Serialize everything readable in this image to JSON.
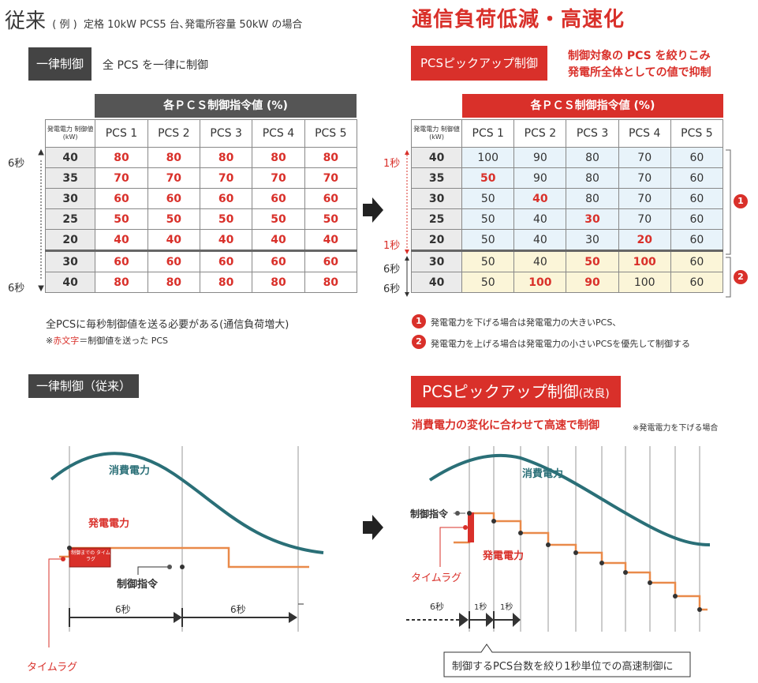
{
  "left": {
    "title_main": "従来",
    "title_paren": "( 例 )",
    "title_cond": "定格 10kW PCS5 台､発電所容量 50kW の場合",
    "badge": "一律制御",
    "badge_desc": "全 PCS を一律に制御",
    "group_header": "各ＰＣＳ制御指令値 (%)",
    "row_header": "発電電力 制御値 (kW)",
    "columns": [
      "PCS 1",
      "PCS 2",
      "PCS 3",
      "PCS 4",
      "PCS 5"
    ],
    "rows": [
      {
        "kw": "40",
        "vals": [
          "80",
          "80",
          "80",
          "80",
          "80"
        ]
      },
      {
        "kw": "35",
        "vals": [
          "70",
          "70",
          "70",
          "70",
          "70"
        ]
      },
      {
        "kw": "30",
        "vals": [
          "60",
          "60",
          "60",
          "60",
          "60"
        ]
      },
      {
        "kw": "25",
        "vals": [
          "50",
          "50",
          "50",
          "50",
          "50"
        ]
      },
      {
        "kw": "20",
        "vals": [
          "40",
          "40",
          "40",
          "40",
          "40"
        ]
      },
      {
        "kw": "30",
        "vals": [
          "60",
          "60",
          "60",
          "60",
          "60"
        ]
      },
      {
        "kw": "40",
        "vals": [
          "80",
          "80",
          "80",
          "80",
          "80"
        ]
      }
    ],
    "side_top": "6秒",
    "side_bottom": "6秒",
    "note1": "全PCSに毎秒制御値を送る必要がある(通信負荷増大)",
    "note2_prefix": "※",
    "note2_red": "赤文字",
    "note2_rest": "＝制御値を送った PCS"
  },
  "right": {
    "title": "通信負荷低減・高速化",
    "badge": "PCSピックアップ制御",
    "badge_desc1": "制御対象の PCS を絞りこみ",
    "badge_desc2": "発電所全体としての値で抑制",
    "group_header": "各ＰＣＳ制御指令値 (%)",
    "row_header": "発電電力 制御値 (kW)",
    "columns": [
      "PCS 1",
      "PCS 2",
      "PCS 3",
      "PCS 4",
      "PCS 5"
    ],
    "rows": [
      {
        "kw": "40",
        "vals": [
          "100",
          "90",
          "80",
          "70",
          "60"
        ]
      },
      {
        "kw": "35",
        "vals": [
          "50",
          "90",
          "80",
          "70",
          "60"
        ]
      },
      {
        "kw": "30",
        "vals": [
          "50",
          "40",
          "80",
          "70",
          "60"
        ]
      },
      {
        "kw": "25",
        "vals": [
          "50",
          "40",
          "30",
          "70",
          "60"
        ]
      },
      {
        "kw": "20",
        "vals": [
          "50",
          "40",
          "30",
          "20",
          "60"
        ]
      },
      {
        "kw": "30",
        "vals": [
          "50",
          "40",
          "50",
          "100",
          "60"
        ]
      },
      {
        "kw": "40",
        "vals": [
          "50",
          "100",
          "90",
          "100",
          "60"
        ]
      }
    ],
    "red_cells": [
      [
        1,
        0
      ],
      [
        2,
        1
      ],
      [
        3,
        2
      ],
      [
        4,
        3
      ],
      [
        5,
        2
      ],
      [
        5,
        3
      ],
      [
        6,
        1
      ],
      [
        6,
        2
      ]
    ],
    "side_top": "1秒",
    "side_mid": "1秒",
    "side_r6": "6秒",
    "side_r7": "6秒",
    "group1": "1",
    "group2": "2",
    "legend1": "発電電力を下げる場合は発電電力の大きいPCS、",
    "legend2": "発電電力を上げる場合は発電電力の小さいPCSを優先して制御する"
  },
  "bottom_left": {
    "badge": "一律制御（従来）",
    "consumption": "消費電力",
    "generation": "発電電力",
    "command": "制御指令",
    "lag_box": "制御までの タイムラグ",
    "time_lag": "タイムラグ",
    "interval1": "6秒",
    "interval2": "6秒"
  },
  "bottom_right": {
    "badge_main": "PCSピックアップ制御",
    "badge_sub": "(改良)",
    "subtitle": "消費電力の変化に合わせて高速で制御",
    "subtitle_note": "※発電電力を下げる場合",
    "consumption": "消費電力",
    "generation": "発電電力",
    "command": "制御指令",
    "time_lag": "タイムラグ",
    "interval_6": "6秒",
    "interval_1a": "1秒",
    "interval_1b": "1秒",
    "callout": "制御するPCS台数を絞り1秒単位での高速制御に"
  },
  "colors": {
    "accent_red": "#d9302a",
    "dark": "#444444",
    "teal": "#2a6f77",
    "orange": "#e98a4a",
    "light_blue": "#e8f3fa",
    "light_yellow": "#fbf5d8"
  }
}
